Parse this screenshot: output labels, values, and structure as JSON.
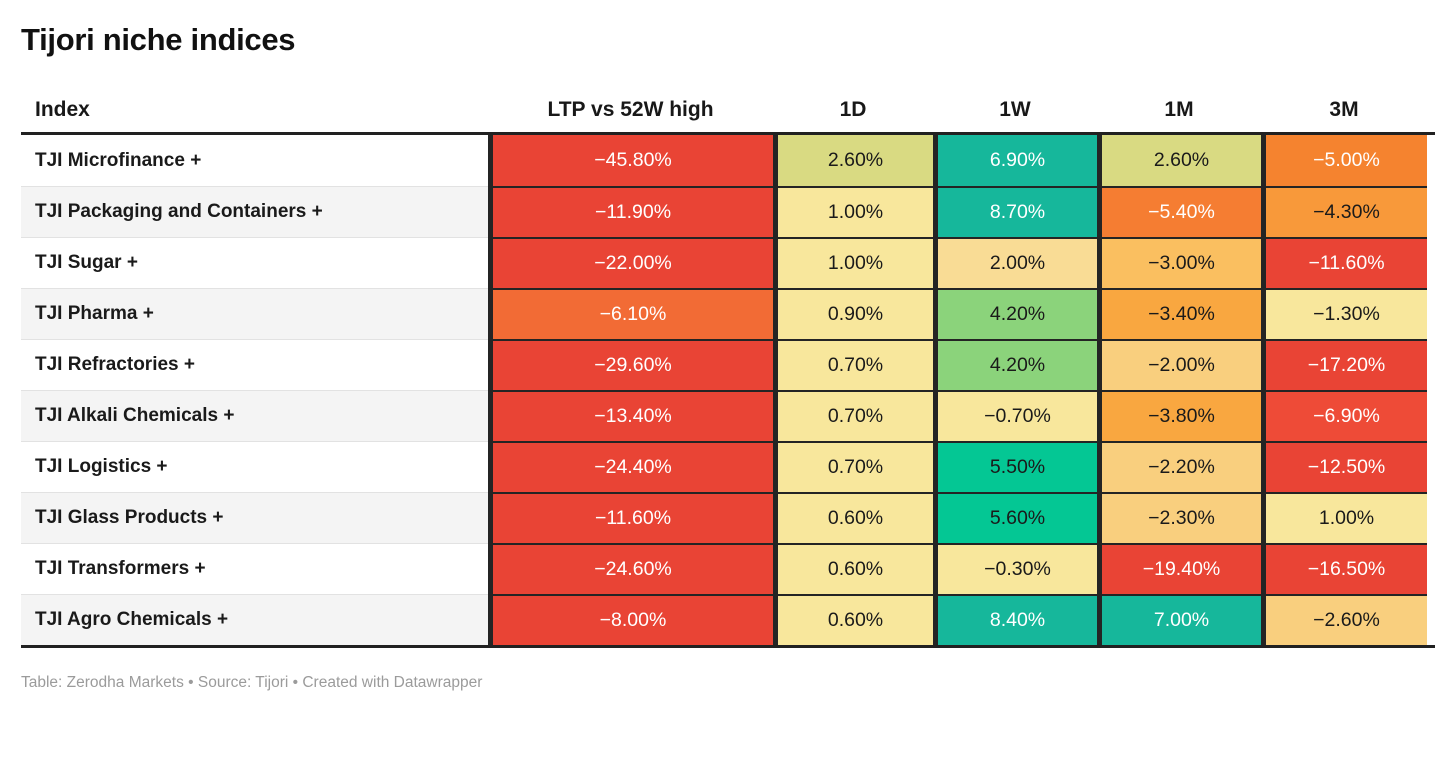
{
  "title": "Tijori niche indices",
  "footer": "Table: Zerodha Markets • Source: Tijori • Created with Datawrapper",
  "columns": [
    "Index",
    "LTP vs 52W high",
    "1D",
    "1W",
    "1M",
    "3M"
  ],
  "palette": {
    "red": "#e94435",
    "red_light": "#ee4b37",
    "orange_deep": "#f26b35",
    "orange": "#f57d32",
    "orange_mid": "#f5832f",
    "amber_deep": "#f8993a",
    "amber": "#f9a740",
    "amber_light": "#fabf60",
    "sand": "#f9cf7e",
    "sand_light": "#f9dc95",
    "pale_yellow": "#f8e79c",
    "olive": "#d9da82",
    "green": "#8bd37b",
    "mint": "#04c794",
    "teal": "#16b79b",
    "text_dark": "#1a1a1a",
    "text_light": "#ffffff",
    "border_dark": "#242424"
  },
  "chart_data": {
    "type": "table",
    "title": "Tijori niche indices",
    "columns": [
      "Index",
      "LTP vs 52W high",
      "1D",
      "1W",
      "1M",
      "3M"
    ],
    "rows": [
      {
        "index": "TJI Microfinance +",
        "cells": [
          {
            "value": "−45.80%",
            "bg": "#e94435",
            "fg": "#ffffff"
          },
          {
            "value": "2.60%",
            "bg": "#d9da82",
            "fg": "#1a1a1a"
          },
          {
            "value": "6.90%",
            "bg": "#16b79b",
            "fg": "#ffffff"
          },
          {
            "value": "2.60%",
            "bg": "#d9da82",
            "fg": "#1a1a1a"
          },
          {
            "value": "−5.00%",
            "bg": "#f5832f",
            "fg": "#ffffff"
          }
        ]
      },
      {
        "index": "TJI Packaging and Containers +",
        "cells": [
          {
            "value": "−11.90%",
            "bg": "#e94435",
            "fg": "#ffffff"
          },
          {
            "value": "1.00%",
            "bg": "#f8e79c",
            "fg": "#1a1a1a"
          },
          {
            "value": "8.70%",
            "bg": "#16b79b",
            "fg": "#ffffff"
          },
          {
            "value": "−5.40%",
            "bg": "#f57d32",
            "fg": "#ffffff"
          },
          {
            "value": "−4.30%",
            "bg": "#f8993a",
            "fg": "#1a1a1a"
          }
        ]
      },
      {
        "index": "TJI Sugar +",
        "cells": [
          {
            "value": "−22.00%",
            "bg": "#e94435",
            "fg": "#ffffff"
          },
          {
            "value": "1.00%",
            "bg": "#f8e79c",
            "fg": "#1a1a1a"
          },
          {
            "value": "2.00%",
            "bg": "#f9dc95",
            "fg": "#1a1a1a"
          },
          {
            "value": "−3.00%",
            "bg": "#fabf60",
            "fg": "#1a1a1a"
          },
          {
            "value": "−11.60%",
            "bg": "#e94435",
            "fg": "#ffffff"
          }
        ]
      },
      {
        "index": "TJI Pharma +",
        "cells": [
          {
            "value": "−6.10%",
            "bg": "#f26b35",
            "fg": "#ffffff"
          },
          {
            "value": "0.90%",
            "bg": "#f8e79c",
            "fg": "#1a1a1a"
          },
          {
            "value": "4.20%",
            "bg": "#8bd37b",
            "fg": "#1a1a1a"
          },
          {
            "value": "−3.40%",
            "bg": "#f9a740",
            "fg": "#1a1a1a"
          },
          {
            "value": "−1.30%",
            "bg": "#f8e79c",
            "fg": "#1a1a1a"
          }
        ]
      },
      {
        "index": "TJI Refractories +",
        "cells": [
          {
            "value": "−29.60%",
            "bg": "#e94435",
            "fg": "#ffffff"
          },
          {
            "value": "0.70%",
            "bg": "#f8e79c",
            "fg": "#1a1a1a"
          },
          {
            "value": "4.20%",
            "bg": "#8bd37b",
            "fg": "#1a1a1a"
          },
          {
            "value": "−2.00%",
            "bg": "#f9cf7e",
            "fg": "#1a1a1a"
          },
          {
            "value": "−17.20%",
            "bg": "#e94435",
            "fg": "#ffffff"
          }
        ]
      },
      {
        "index": "TJI Alkali Chemicals +",
        "cells": [
          {
            "value": "−13.40%",
            "bg": "#e94435",
            "fg": "#ffffff"
          },
          {
            "value": "0.70%",
            "bg": "#f8e79c",
            "fg": "#1a1a1a"
          },
          {
            "value": "−0.70%",
            "bg": "#f8e79c",
            "fg": "#1a1a1a"
          },
          {
            "value": "−3.80%",
            "bg": "#f9a740",
            "fg": "#1a1a1a"
          },
          {
            "value": "−6.90%",
            "bg": "#ee4b37",
            "fg": "#ffffff"
          }
        ]
      },
      {
        "index": "TJI Logistics +",
        "cells": [
          {
            "value": "−24.40%",
            "bg": "#e94435",
            "fg": "#ffffff"
          },
          {
            "value": "0.70%",
            "bg": "#f8e79c",
            "fg": "#1a1a1a"
          },
          {
            "value": "5.50%",
            "bg": "#04c794",
            "fg": "#1a1a1a"
          },
          {
            "value": "−2.20%",
            "bg": "#f9cf7e",
            "fg": "#1a1a1a"
          },
          {
            "value": "−12.50%",
            "bg": "#e94435",
            "fg": "#ffffff"
          }
        ]
      },
      {
        "index": "TJI Glass Products +",
        "cells": [
          {
            "value": "−11.60%",
            "bg": "#e94435",
            "fg": "#ffffff"
          },
          {
            "value": "0.60%",
            "bg": "#f8e79c",
            "fg": "#1a1a1a"
          },
          {
            "value": "5.60%",
            "bg": "#04c794",
            "fg": "#1a1a1a"
          },
          {
            "value": "−2.30%",
            "bg": "#f9cf7e",
            "fg": "#1a1a1a"
          },
          {
            "value": "1.00%",
            "bg": "#f8e79c",
            "fg": "#1a1a1a"
          }
        ]
      },
      {
        "index": "TJI Transformers +",
        "cells": [
          {
            "value": "−24.60%",
            "bg": "#e94435",
            "fg": "#ffffff"
          },
          {
            "value": "0.60%",
            "bg": "#f8e79c",
            "fg": "#1a1a1a"
          },
          {
            "value": "−0.30%",
            "bg": "#f8e79c",
            "fg": "#1a1a1a"
          },
          {
            "value": "−19.40%",
            "bg": "#e94435",
            "fg": "#ffffff"
          },
          {
            "value": "−16.50%",
            "bg": "#e94435",
            "fg": "#ffffff"
          }
        ]
      },
      {
        "index": "TJI Agro Chemicals +",
        "cells": [
          {
            "value": "−8.00%",
            "bg": "#e94435",
            "fg": "#ffffff"
          },
          {
            "value": "0.60%",
            "bg": "#f8e79c",
            "fg": "#1a1a1a"
          },
          {
            "value": "8.40%",
            "bg": "#16b79b",
            "fg": "#ffffff"
          },
          {
            "value": "7.00%",
            "bg": "#16b79b",
            "fg": "#ffffff"
          },
          {
            "value": "−2.60%",
            "bg": "#f9cf7e",
            "fg": "#1a1a1a"
          }
        ]
      }
    ]
  }
}
